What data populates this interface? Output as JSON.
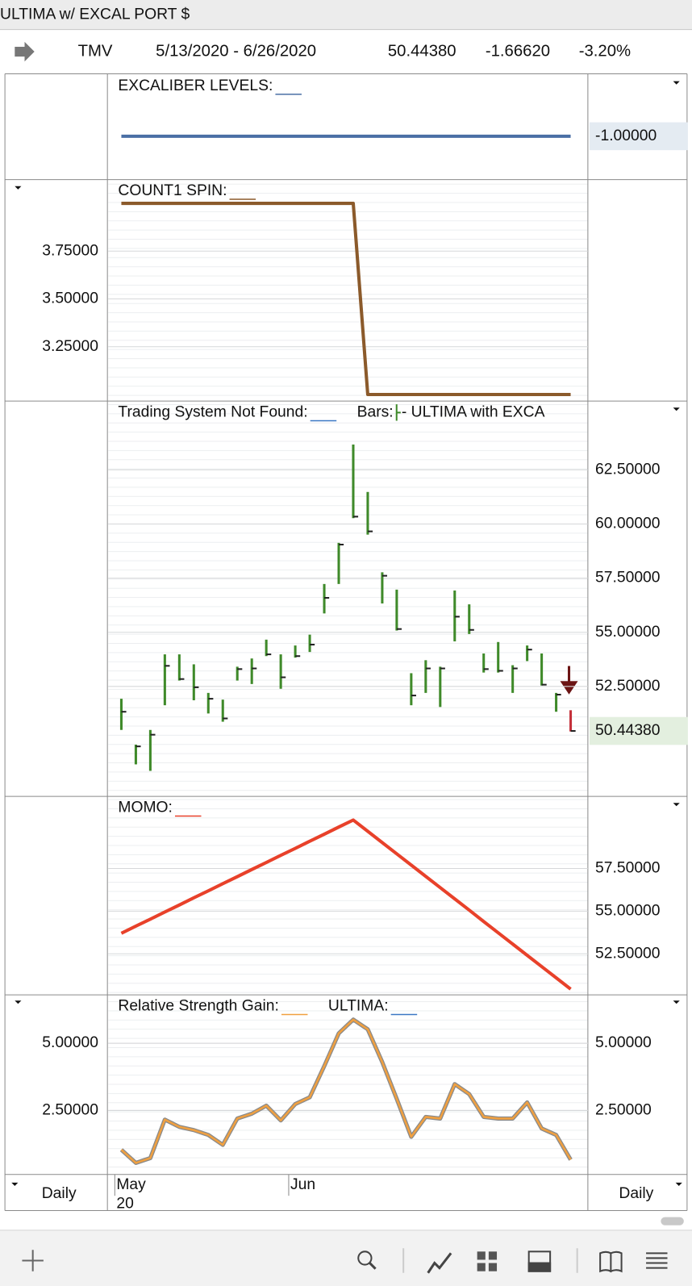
{
  "window_title": "ULTIMA w/ EXCAL PORT $",
  "header": {
    "symbol": "TMV",
    "date_range": "5/13/2020 - 6/26/2020",
    "last": "50.44380",
    "change": "-1.66620",
    "change_pct": "-3.20%"
  },
  "x_axis": {
    "categories": [
      "May",
      null,
      null,
      null,
      null,
      null,
      null,
      null,
      null,
      null,
      null,
      null,
      "Jun",
      null,
      null,
      null,
      null,
      null,
      null,
      null,
      null,
      null,
      null,
      null,
      null,
      null,
      null,
      null,
      null,
      null,
      null,
      null
    ],
    "year_label": "20",
    "left_label": "Daily",
    "right_label": "Daily"
  },
  "chart_data": [
    {
      "type": "line",
      "yaxis": "right",
      "legend": [
        {
          "name": "EXCALIBER LEVELS:",
          "color": "#4a6fa5"
        }
      ],
      "series": [
        {
          "color": "#4a6fa5",
          "values": [
            -1,
            -1,
            -1,
            -1,
            -1,
            -1,
            -1,
            -1,
            -1,
            -1,
            -1,
            -1,
            -1,
            -1,
            -1,
            -1,
            -1,
            -1,
            -1,
            -1,
            -1,
            -1,
            -1,
            -1,
            -1,
            -1,
            -1,
            -1,
            -1,
            -1,
            -1,
            -1
          ]
        }
      ],
      "ylim": [
        -1.7,
        0
      ],
      "yticks": [],
      "last_label": "-1.00000",
      "last_label_color": "#2f4f77",
      "last_label_bg": "#e4ebf2"
    },
    {
      "type": "line",
      "yaxis": "left",
      "legend": [
        {
          "name": "COUNT1 SPIN:",
          "color": "#8b5a2b"
        }
      ],
      "series": [
        {
          "color": "#8b5a2b",
          "values": [
            4,
            4,
            4,
            4,
            4,
            4,
            4,
            4,
            4,
            4,
            4,
            4,
            4,
            4,
            4,
            4,
            4,
            3,
            3,
            3,
            3,
            3,
            3,
            3,
            3,
            3,
            3,
            3,
            3,
            3,
            3,
            3
          ]
        }
      ],
      "ylim": [
        2.97,
        4.12
      ],
      "yticks": [
        {
          "value": 3.75,
          "label": "3.75000"
        },
        {
          "value": 3.5,
          "label": "3.50000"
        },
        {
          "value": 3.25,
          "label": "3.25000"
        }
      ]
    },
    {
      "type": "ohlc",
      "yaxis": "right",
      "legend": [
        {
          "name": "Trading System Not Found:",
          "color": "#3b78c4"
        },
        {
          "name": "Bars:",
          "color": "#3f8a2a",
          "marker": "bar",
          "suffix": "- ULTIMA with EXCA"
        }
      ],
      "color": "#3f8a2a",
      "last_color": "#c4303a",
      "high": [
        51.93,
        49.81,
        50.49,
        53.98,
        53.98,
        53.52,
        52.2,
        51.89,
        53.41,
        53.79,
        54.66,
        53.98,
        54.39,
        54.89,
        57.23,
        59.13,
        63.67,
        61.48,
        57.77,
        56.97,
        53.11,
        53.71,
        53.41,
        56.93,
        56.29,
        54.02,
        54.55,
        53.48,
        54.39,
        54.02,
        52.2,
        51.4
      ],
      "low": [
        50.49,
        48.9,
        48.6,
        51.63,
        52.77,
        51.86,
        51.25,
        50.87,
        52.77,
        52.61,
        53.9,
        52.39,
        53.83,
        54.09,
        55.87,
        57.23,
        60.27,
        59.51,
        56.33,
        55.08,
        51.63,
        52.2,
        51.55,
        54.58,
        54.92,
        53.14,
        53.14,
        52.2,
        53.67,
        52.54,
        51.33,
        50.42
      ],
      "close": [
        51.33,
        49.73,
        50.27,
        53.45,
        52.84,
        52.46,
        51.93,
        51.02,
        53.3,
        53.33,
        53.98,
        52.92,
        53.9,
        54.43,
        56.59,
        59.05,
        60.34,
        59.66,
        57.61,
        55.15,
        52.08,
        53.33,
        53.33,
        55.72,
        55.11,
        53.3,
        53.22,
        53.33,
        54.2,
        52.58,
        52.12,
        50.4438
      ],
      "ylim": [
        47.46,
        65.64
      ],
      "yticks": [
        {
          "value": 62.5,
          "label": "62.50000"
        },
        {
          "value": 60,
          "label": "60.00000"
        },
        {
          "value": 57.5,
          "label": "57.50000"
        },
        {
          "value": 55,
          "label": "55.00000"
        },
        {
          "value": 52.5,
          "label": "52.50000"
        }
      ],
      "last_label": "50.44380",
      "last_label_color": "#2e6b1f",
      "last_label_bg": "#e3efdf"
    },
    {
      "type": "line",
      "yaxis": "right",
      "legend": [
        {
          "name": "MOMO:",
          "color": "#e8412a"
        }
      ],
      "series": [
        {
          "color": "#e8412a",
          "values": [
            53.7,
            54.12,
            54.53,
            54.95,
            55.36,
            55.78,
            56.19,
            56.61,
            57.02,
            57.44,
            57.85,
            58.27,
            58.68,
            59.1,
            59.51,
            59.93,
            60.34,
            59.68,
            59.02,
            58.36,
            57.7,
            57.04,
            56.38,
            55.72,
            55.06,
            54.39,
            53.73,
            53.07,
            52.41,
            51.75,
            51.09,
            50.43
          ]
        }
      ],
      "ylim": [
        50.14,
        61.68
      ],
      "yticks": [
        {
          "value": 57.5,
          "label": "57.50000"
        },
        {
          "value": 55,
          "label": "55.00000"
        },
        {
          "value": 52.5,
          "label": "52.50000"
        }
      ]
    },
    {
      "type": "line",
      "yaxis": "left",
      "legend": [
        {
          "name": "Relative Strength Gain:",
          "color": "#f0a040"
        },
        {
          "name": "ULTIMA:",
          "color": "#3b78c4"
        }
      ],
      "series": [
        {
          "color": "#f0a040",
          "outline": "#8a8a8a",
          "values": [
            1.04,
            0.55,
            0.73,
            2.16,
            1.89,
            1.77,
            1.59,
            1.22,
            2.2,
            2.38,
            2.68,
            2.13,
            2.74,
            2.99,
            4.15,
            5.37,
            5.88,
            5.52,
            4.3,
            2.93,
            1.52,
            2.26,
            2.2,
            3.48,
            3.11,
            2.26,
            2.2,
            2.2,
            2.8,
            1.83,
            1.59,
            0.67
          ]
        }
      ],
      "ylim": [
        0.12,
        6.77
      ],
      "yticks": [
        {
          "value": 5,
          "label": "5.00000"
        },
        {
          "value": 2.5,
          "label": "2.50000"
        }
      ],
      "y2lim": [
        0.12,
        6.77
      ],
      "y2ticks": [
        {
          "value": 5,
          "label": "5.00000"
        },
        {
          "value": 2.5,
          "label": "2.50000"
        }
      ]
    }
  ]
}
